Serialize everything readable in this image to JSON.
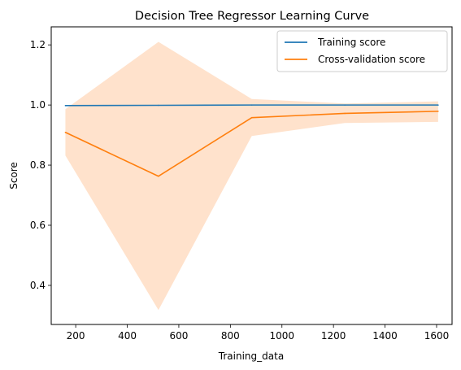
{
  "chart_data": {
    "type": "line",
    "title": "Decision Tree Regressor Learning Curve",
    "xlabel": "Training_data",
    "ylabel": "Score",
    "xlim": [
      105,
      1660
    ],
    "ylim": [
      0.27,
      1.26
    ],
    "xticks": [
      200,
      400,
      600,
      800,
      1000,
      1200,
      1400,
      1600
    ],
    "xtick_labels": [
      "200",
      "400",
      "600",
      "800",
      "1000",
      "1200",
      "1400",
      "1600"
    ],
    "yticks": [
      0.4,
      0.6,
      0.8,
      1.0,
      1.2
    ],
    "ytick_labels": [
      "0.4",
      "0.6",
      "0.8",
      "1.0",
      "1.2"
    ],
    "grid": false,
    "legend_position": "top-right",
    "series": [
      {
        "name": "Training score",
        "color": "#1f77b4",
        "x": [
          160,
          521,
          883,
          1244,
          1606
        ],
        "values": [
          0.998,
          0.999,
          1.0,
          1.0,
          1.0
        ]
      },
      {
        "name": "Cross-validation score",
        "color": "#ff7f0e",
        "x": [
          160,
          521,
          883,
          1244,
          1606
        ],
        "values": [
          0.909,
          0.763,
          0.958,
          0.972,
          0.979
        ],
        "band_lower": [
          0.832,
          0.318,
          0.897,
          0.94,
          0.944
        ],
        "band_upper": [
          0.986,
          1.21,
          1.02,
          1.005,
          1.012
        ],
        "band_color": "#ffe2cc"
      }
    ]
  }
}
